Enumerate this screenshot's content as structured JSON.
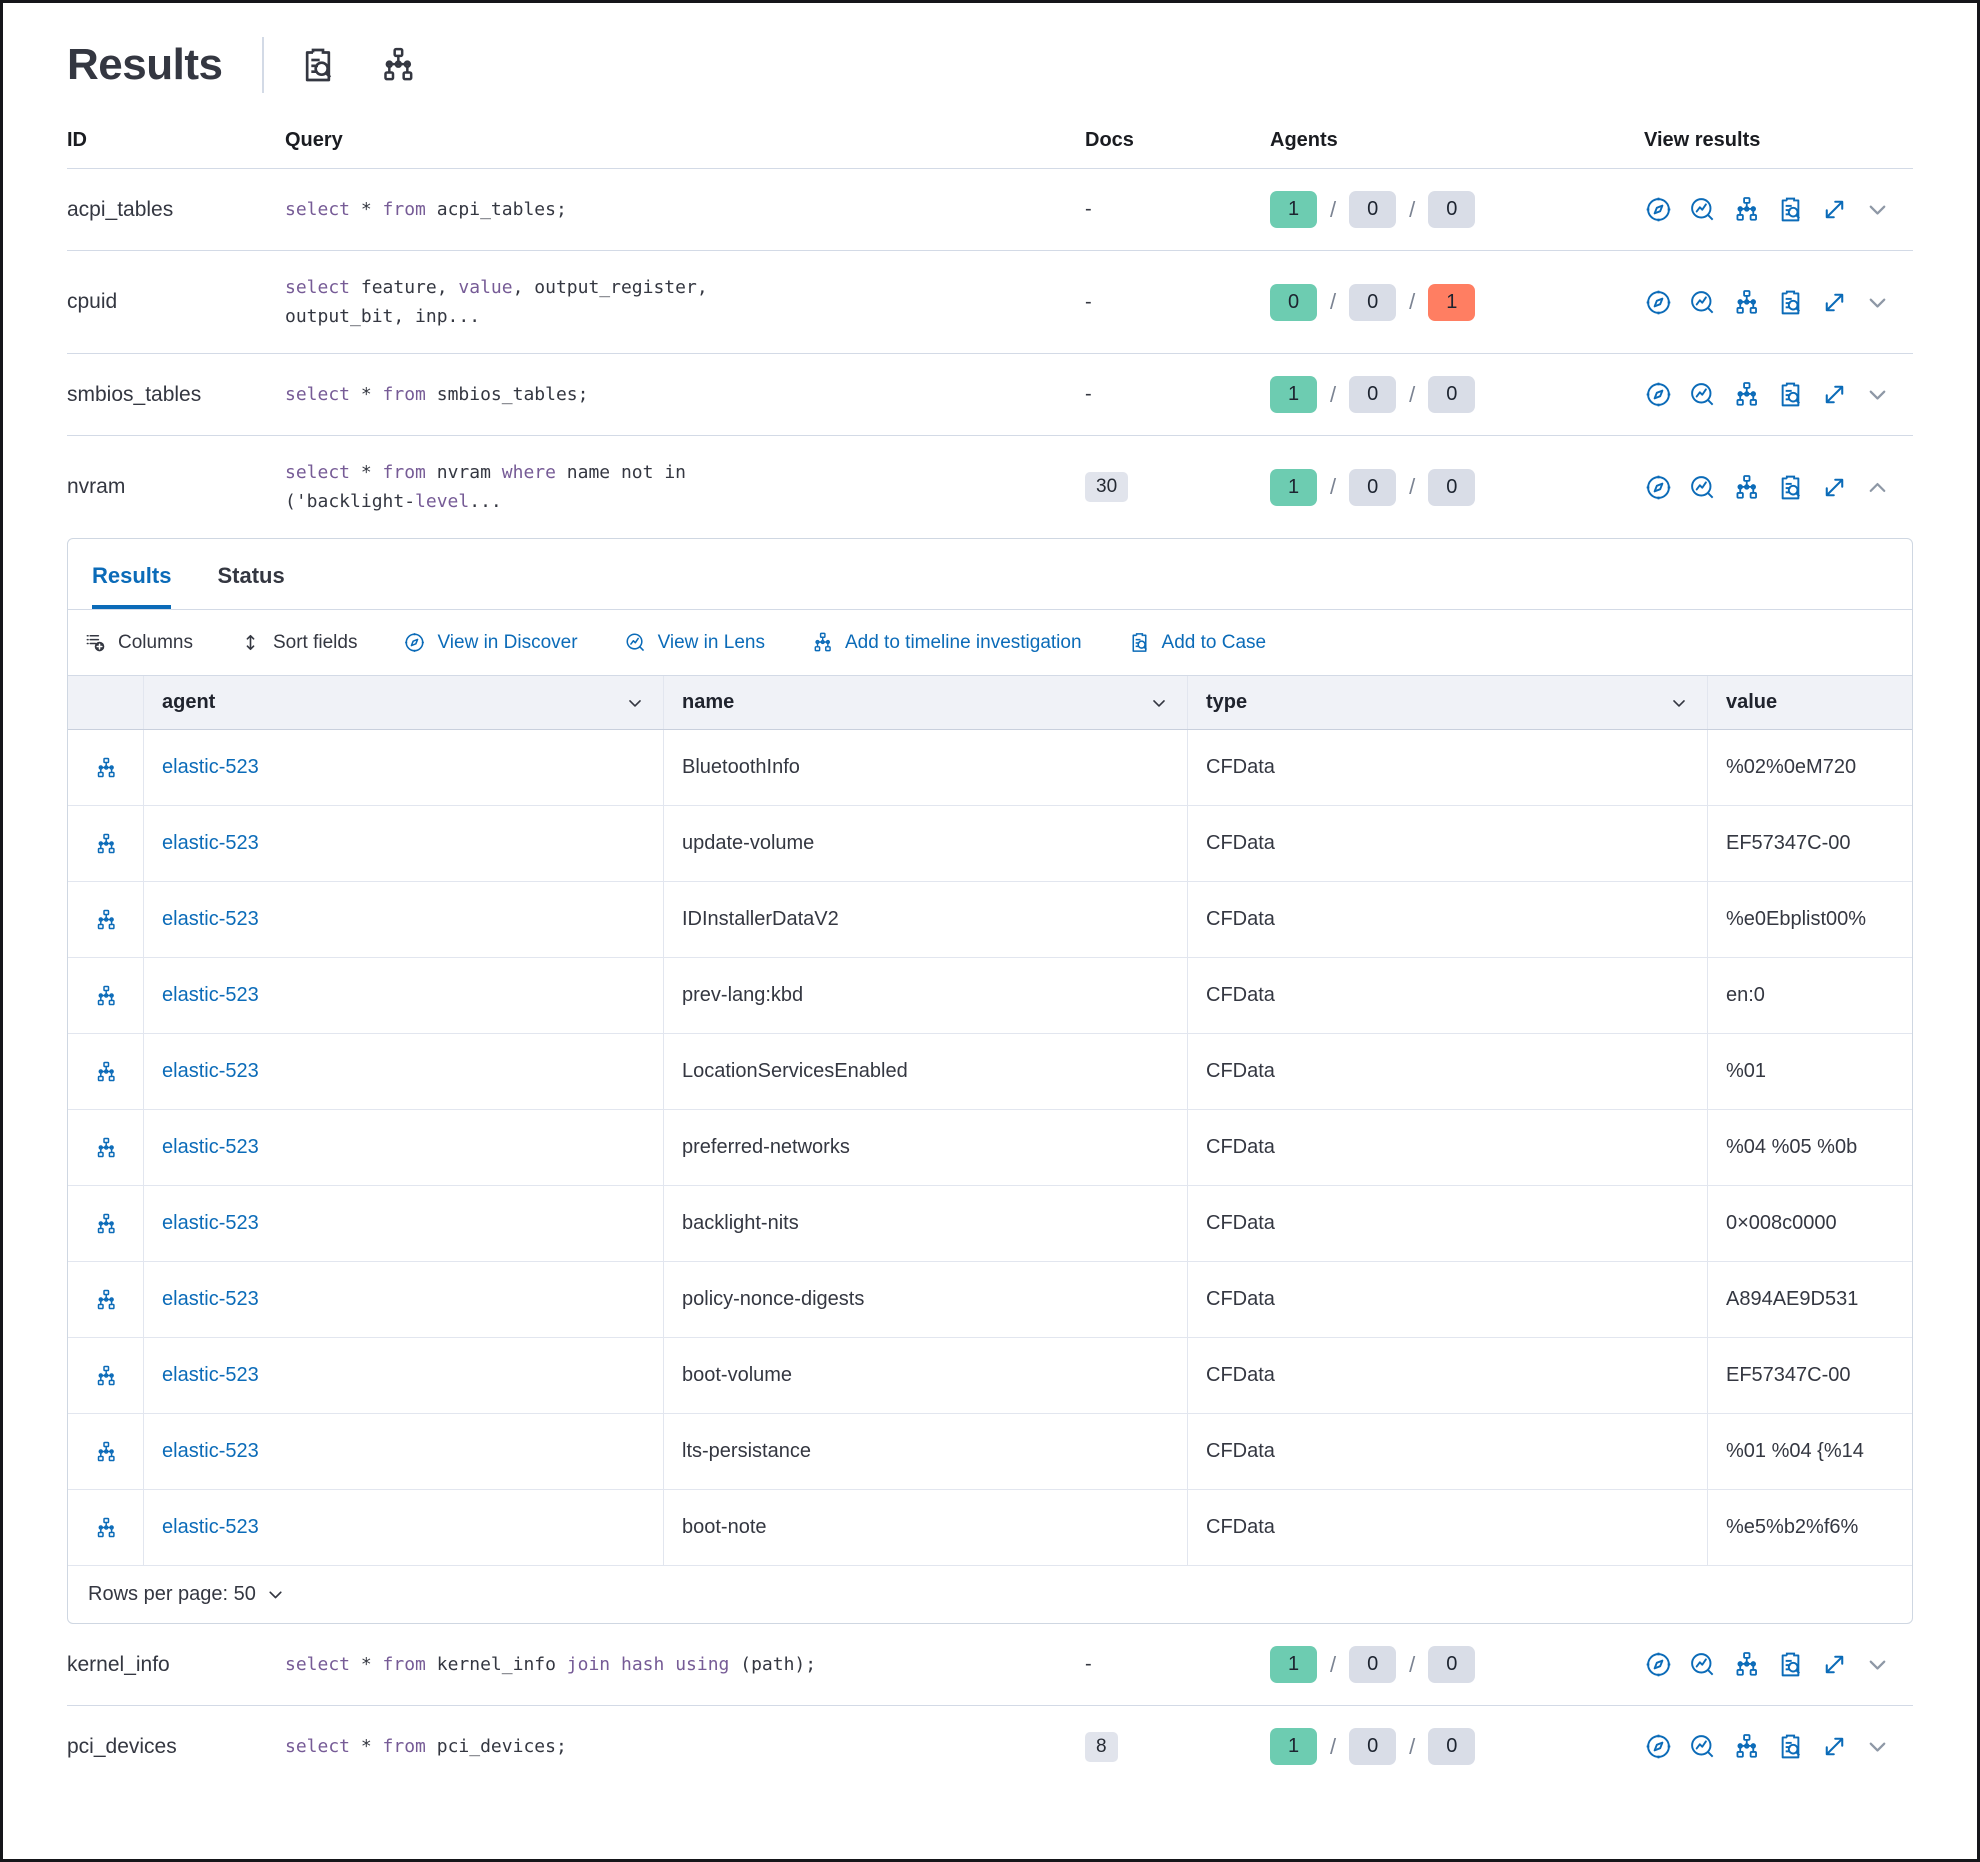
{
  "page": {
    "title": "Results",
    "title_icons": [
      {
        "name": "clipboard-search-icon"
      },
      {
        "name": "timeline-tree-icon"
      }
    ]
  },
  "colors": {
    "accent_blue": "#0b6bb8",
    "keyword_purple": "#765b96",
    "badge_green": "#6dccb1",
    "badge_gray": "#d9dde7",
    "badge_red": "#ff7e62"
  },
  "table": {
    "headers": {
      "id": "ID",
      "query": "Query",
      "docs": "Docs",
      "agents": "Agents",
      "view": "View results"
    },
    "rows_top": [
      {
        "id": "acpi_tables",
        "query": [
          {
            "t": "select",
            "k": true
          },
          {
            "t": " * ",
            "k": false
          },
          {
            "t": "from",
            "k": true
          },
          {
            "t": " acpi_tables;",
            "k": false
          }
        ],
        "docs": "-",
        "docs_badge": false,
        "agents": [
          1,
          0,
          0
        ],
        "expanded": false
      },
      {
        "id": "cpuid",
        "query": [
          {
            "t": "select",
            "k": true
          },
          {
            "t": " feature, ",
            "k": false
          },
          {
            "t": "value",
            "k": true
          },
          {
            "t": ", output_register,\noutput_bit, inp...",
            "k": false
          }
        ],
        "docs": "-",
        "docs_badge": false,
        "agents": [
          0,
          0,
          1
        ],
        "expanded": false
      },
      {
        "id": "smbios_tables",
        "query": [
          {
            "t": "select",
            "k": true
          },
          {
            "t": " * ",
            "k": false
          },
          {
            "t": "from",
            "k": true
          },
          {
            "t": " smbios_tables;",
            "k": false
          }
        ],
        "docs": "-",
        "docs_badge": false,
        "agents": [
          1,
          0,
          0
        ],
        "expanded": false
      },
      {
        "id": "nvram",
        "query": [
          {
            "t": "select",
            "k": true
          },
          {
            "t": " * ",
            "k": false
          },
          {
            "t": "from",
            "k": true
          },
          {
            "t": " nvram ",
            "k": false
          },
          {
            "t": "where",
            "k": true
          },
          {
            "t": " name not in\n('backlight-",
            "k": false
          },
          {
            "t": "level",
            "k": true
          },
          {
            "t": "...",
            "k": false
          }
        ],
        "docs": "30",
        "docs_badge": true,
        "agents": [
          1,
          0,
          0
        ],
        "expanded": true
      }
    ],
    "rows_bottom": [
      {
        "id": "kernel_info",
        "query": [
          {
            "t": "select",
            "k": true
          },
          {
            "t": " * ",
            "k": false
          },
          {
            "t": "from",
            "k": true
          },
          {
            "t": " kernel_info ",
            "k": false
          },
          {
            "t": "join",
            "k": true
          },
          {
            "t": " ",
            "k": false
          },
          {
            "t": "hash",
            "k": true
          },
          {
            "t": " ",
            "k": false
          },
          {
            "t": "using",
            "k": true
          },
          {
            "t": " (path);",
            "k": false
          }
        ],
        "docs": "-",
        "docs_badge": false,
        "agents": [
          1,
          0,
          0
        ],
        "expanded": false
      },
      {
        "id": "pci_devices",
        "query": [
          {
            "t": "select",
            "k": true
          },
          {
            "t": " * ",
            "k": false
          },
          {
            "t": "from",
            "k": true
          },
          {
            "t": " pci_devices;",
            "k": false
          }
        ],
        "docs": "8",
        "docs_badge": true,
        "agents": [
          1,
          0,
          0
        ],
        "expanded": false
      }
    ],
    "view_result_icons": [
      {
        "name": "discover-compass-icon"
      },
      {
        "name": "lens-icon"
      },
      {
        "name": "timeline-tree-icon"
      },
      {
        "name": "add-to-case-icon"
      },
      {
        "name": "expand-icon"
      }
    ]
  },
  "panel": {
    "tabs": [
      {
        "label": "Results",
        "active": true
      },
      {
        "label": "Status",
        "active": false
      }
    ],
    "toolbar": [
      {
        "label": "Columns",
        "icon": "columns-icon",
        "blue": false
      },
      {
        "label": "Sort fields",
        "icon": "sort-icon",
        "blue": false
      },
      {
        "label": "View in Discover",
        "icon": "discover-compass-icon",
        "blue": true
      },
      {
        "label": "View in Lens",
        "icon": "lens-icon",
        "blue": true
      },
      {
        "label": "Add to timeline investigation",
        "icon": "timeline-tree-icon",
        "blue": true
      },
      {
        "label": "Add to Case",
        "icon": "add-to-case-icon",
        "blue": true
      }
    ],
    "grid": {
      "columns": [
        {
          "label": "agent",
          "sortable": true
        },
        {
          "label": "name",
          "sortable": true
        },
        {
          "label": "type",
          "sortable": true
        },
        {
          "label": "value",
          "sortable": false
        }
      ],
      "row_icon": "timeline-tree-icon",
      "rows": [
        {
          "agent": "elastic-523",
          "name": "BluetoothInfo",
          "type": "CFData",
          "value": "%02%0eM720"
        },
        {
          "agent": "elastic-523",
          "name": "update-volume",
          "type": "CFData",
          "value": "EF57347C-00"
        },
        {
          "agent": "elastic-523",
          "name": "IDInstallerDataV2",
          "type": "CFData",
          "value": "%e0Ebplist00%"
        },
        {
          "agent": "elastic-523",
          "name": "prev-lang:kbd",
          "type": "CFData",
          "value": "en:0"
        },
        {
          "agent": "elastic-523",
          "name": "LocationServicesEnabled",
          "type": "CFData",
          "value": "%01"
        },
        {
          "agent": "elastic-523",
          "name": "preferred-networks",
          "type": "CFData",
          "value": "%04 %05 %0b"
        },
        {
          "agent": "elastic-523",
          "name": "backlight-nits",
          "type": "CFData",
          "value": "0×008c0000"
        },
        {
          "agent": "elastic-523",
          "name": "policy-nonce-digests",
          "type": "CFData",
          "value": "A894AE9D531"
        },
        {
          "agent": "elastic-523",
          "name": "boot-volume",
          "type": "CFData",
          "value": "EF57347C-00"
        },
        {
          "agent": "elastic-523",
          "name": "lts-persistance",
          "type": "CFData",
          "value": "%01 %04 {%14"
        },
        {
          "agent": "elastic-523",
          "name": "boot-note",
          "type": "CFData",
          "value": "%e5%b2%f6%"
        }
      ],
      "footer": {
        "rows_per_page": "Rows per page: 50"
      }
    }
  }
}
